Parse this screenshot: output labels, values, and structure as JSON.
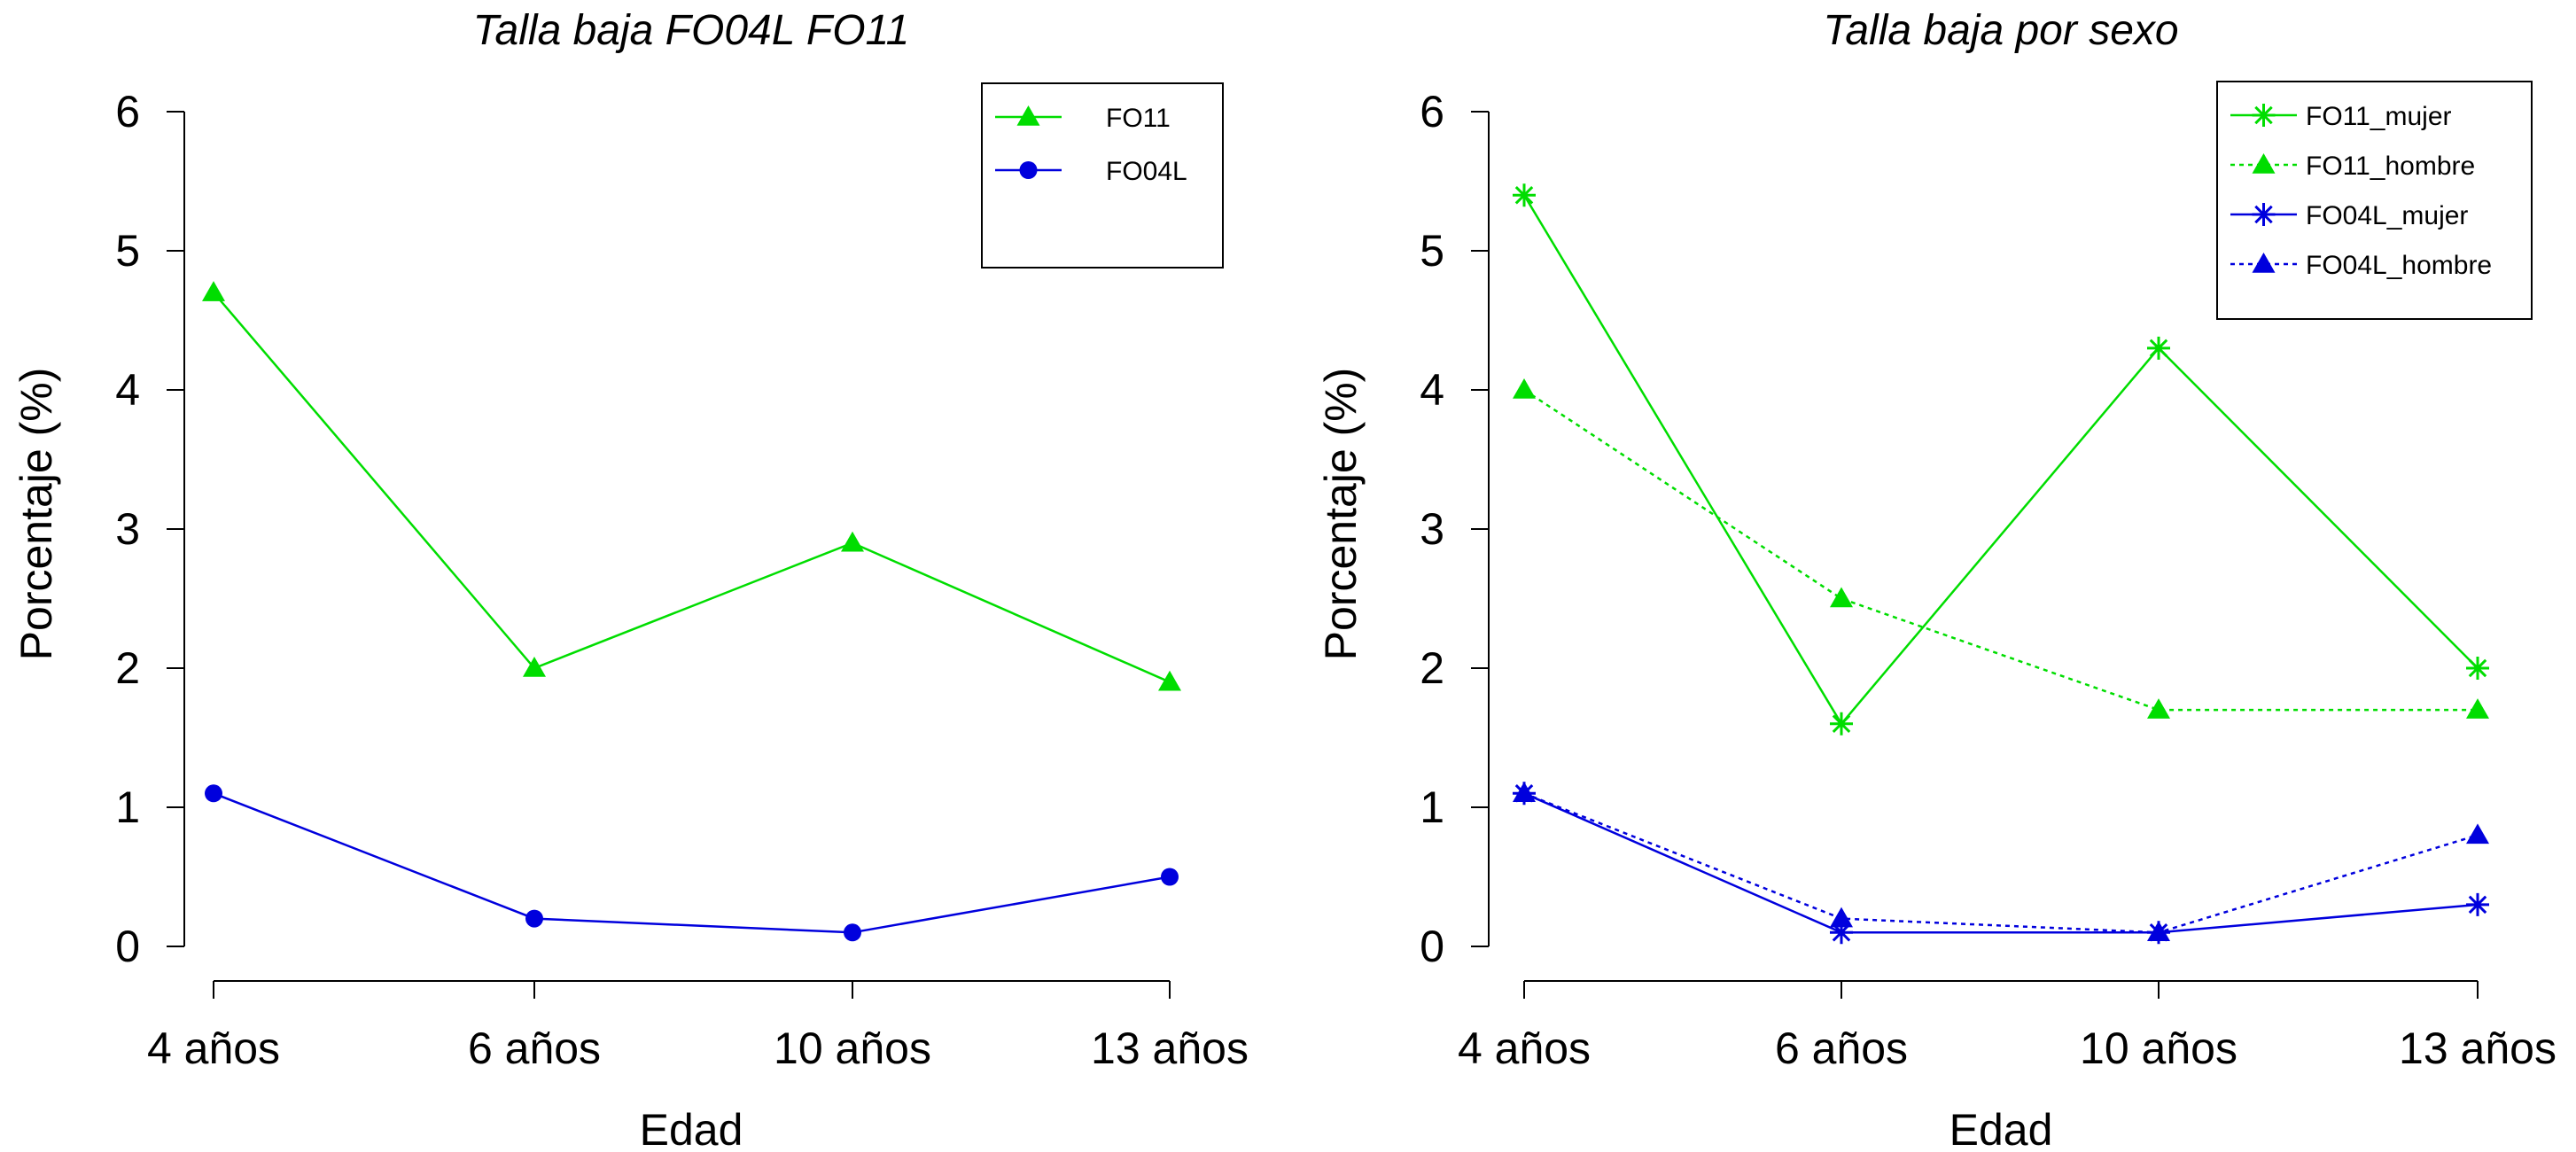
{
  "chart_data": [
    {
      "type": "line",
      "title": "Talla baja FO04L FO11",
      "xlabel": "Edad",
      "ylabel": "Porcentaje (%)",
      "categories": [
        "4 años",
        "6 años",
        "10 años",
        "13 años"
      ],
      "ylim": [
        0,
        6
      ],
      "yticks": [
        0,
        1,
        2,
        3,
        4,
        5,
        6
      ],
      "grid": false,
      "legend_position": "top-right",
      "series": [
        {
          "name": "FO11",
          "values": [
            4.7,
            2.0,
            2.9,
            1.9
          ],
          "color": "#00dd00",
          "marker": "triangle",
          "line": "solid"
        },
        {
          "name": "FO04L",
          "values": [
            1.1,
            0.2,
            0.1,
            0.5
          ],
          "color": "#0000dd",
          "marker": "circle",
          "line": "solid"
        }
      ]
    },
    {
      "type": "line",
      "title": "Talla baja por sexo",
      "xlabel": "Edad",
      "ylabel": "Porcentaje (%)",
      "categories": [
        "4 años",
        "6 años",
        "10 años",
        "13 años"
      ],
      "ylim": [
        0,
        6
      ],
      "yticks": [
        0,
        1,
        2,
        3,
        4,
        5,
        6
      ],
      "grid": false,
      "legend_position": "top-right",
      "series": [
        {
          "name": "FO11_mujer",
          "values": [
            5.4,
            1.6,
            4.3,
            2.0
          ],
          "color": "#00dd00",
          "marker": "asterisk",
          "line": "solid"
        },
        {
          "name": "FO11_hombre",
          "values": [
            4.0,
            2.5,
            1.7,
            1.7
          ],
          "color": "#00dd00",
          "marker": "triangle",
          "line": "dotted"
        },
        {
          "name": "FO04L_mujer",
          "values": [
            1.1,
            0.1,
            0.1,
            0.3
          ],
          "color": "#0000dd",
          "marker": "asterisk",
          "line": "solid"
        },
        {
          "name": "FO04L_hombre",
          "values": [
            1.1,
            0.2,
            0.1,
            0.8
          ],
          "color": "#0000dd",
          "marker": "triangle",
          "line": "dotted"
        }
      ]
    }
  ]
}
